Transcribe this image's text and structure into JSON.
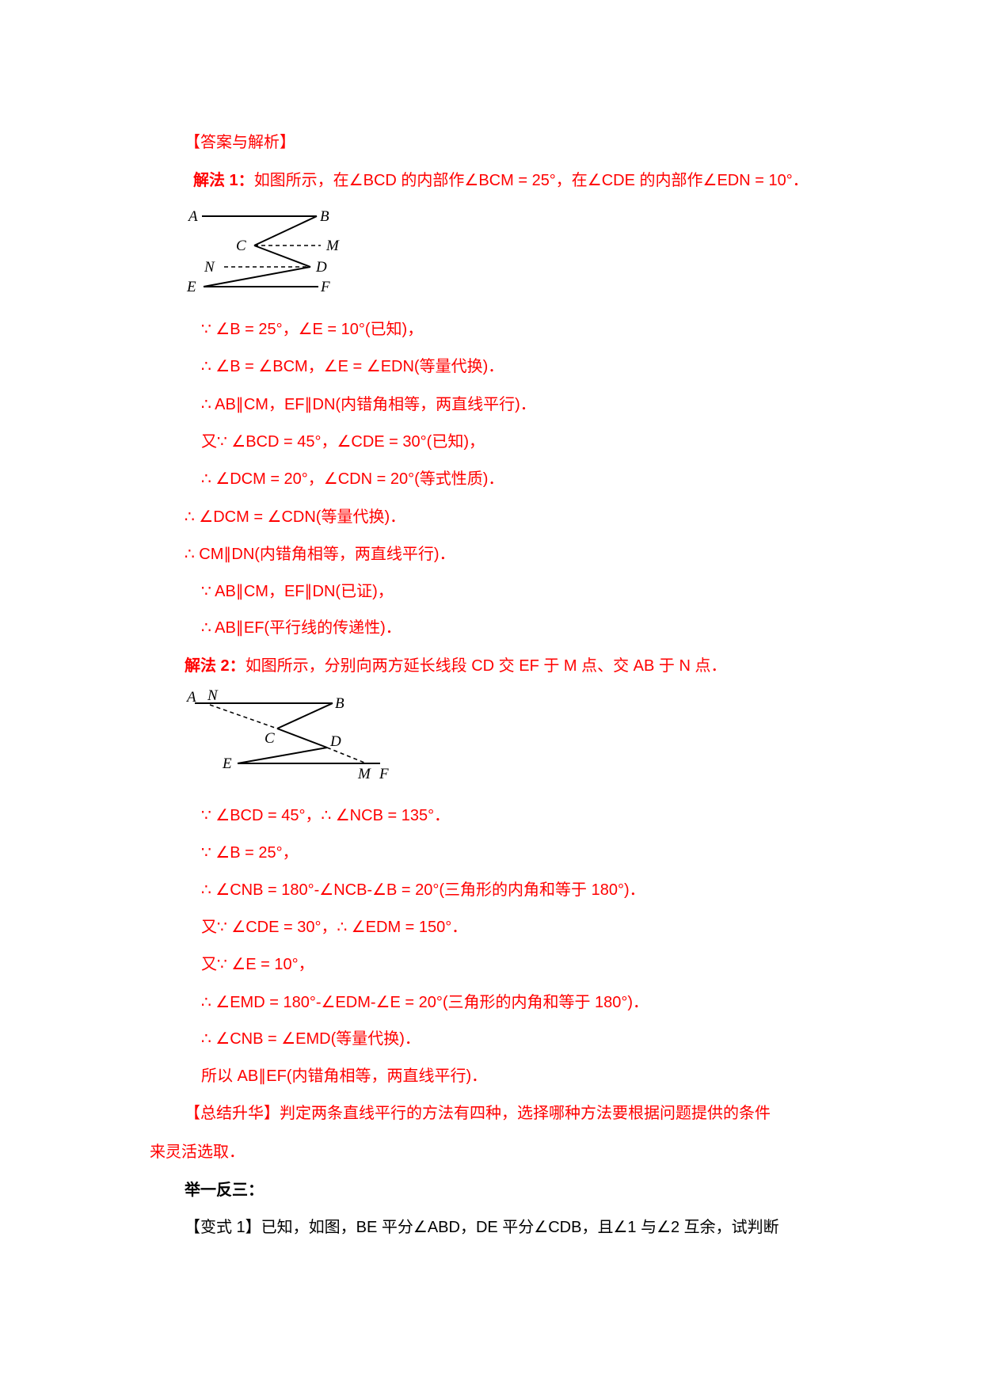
{
  "header": "【答案与解析】",
  "method1": {
    "title": "解法 1：",
    "intro": "如图所示，在∠BCD 的内部作∠BCM = 25°，在∠CDE 的内部作∠EDN = 10°．",
    "diagram_labels": {
      "A": "A",
      "B": "B",
      "C": "C",
      "M": "M",
      "N": "N",
      "D": "D",
      "E": "E",
      "F": "F"
    },
    "steps": [
      "∵ ∠B = 25°，∠E = 10°(已知)，",
      "∴ ∠B = ∠BCM，∠E = ∠EDN(等量代换)．",
      "∴ AB∥CM，EF∥DN(内错角相等，两直线平行)．",
      "又∵ ∠BCD = 45°，∠CDE = 30°(已知)，",
      "∴ ∠DCM = 20°，∠CDN = 20°(等式性质)．",
      "∴ ∠DCM = ∠CDN(等量代换)．",
      "∴ CM∥DN(内错角相等，两直线平行)．",
      "∵ AB∥CM，EF∥DN(已证)，",
      "∴ AB∥EF(平行线的传递性)．"
    ]
  },
  "method2": {
    "title": "解法 2：",
    "intro": "如图所示，分别向两方延长线段 CD 交 EF 于 M 点、交 AB 于 N 点．",
    "diagram_labels": {
      "A": "A",
      "N": "N",
      "B": "B",
      "C": "C",
      "D": "D",
      "E": "E",
      "M": "M",
      "F": "F"
    },
    "steps": [
      "∵ ∠BCD = 45°，∴ ∠NCB = 135°．",
      "∵ ∠B = 25°，",
      "∴ ∠CNB = 180°-∠NCB-∠B = 20°(三角形的内角和等于 180°)．",
      "又∵ ∠CDE = 30°，∴ ∠EDM = 150°．",
      "又∵ ∠E = 10°，",
      "∴ ∠EMD = 180°-∠EDM-∠E = 20°(三角形的内角和等于 180°)．",
      "∴ ∠CNB = ∠EMD(等量代换)．",
      "所以 AB∥EF(内错角相等，两直线平行)．"
    ]
  },
  "summary": {
    "line1": "【总结升华】判定两条直线平行的方法有四种，选择哪种方法要根据问题提供的条件",
    "line2": "来灵活选取．"
  },
  "practice": {
    "title": "举一反三：",
    "variant1": "【变式 1】已知，如图，BE 平分∠ABD，DE 平分∠CDB，且∠1 与∠2 互余，试判断"
  },
  "colors": {
    "answer_text": "#ff0000",
    "body_text": "#000000"
  }
}
